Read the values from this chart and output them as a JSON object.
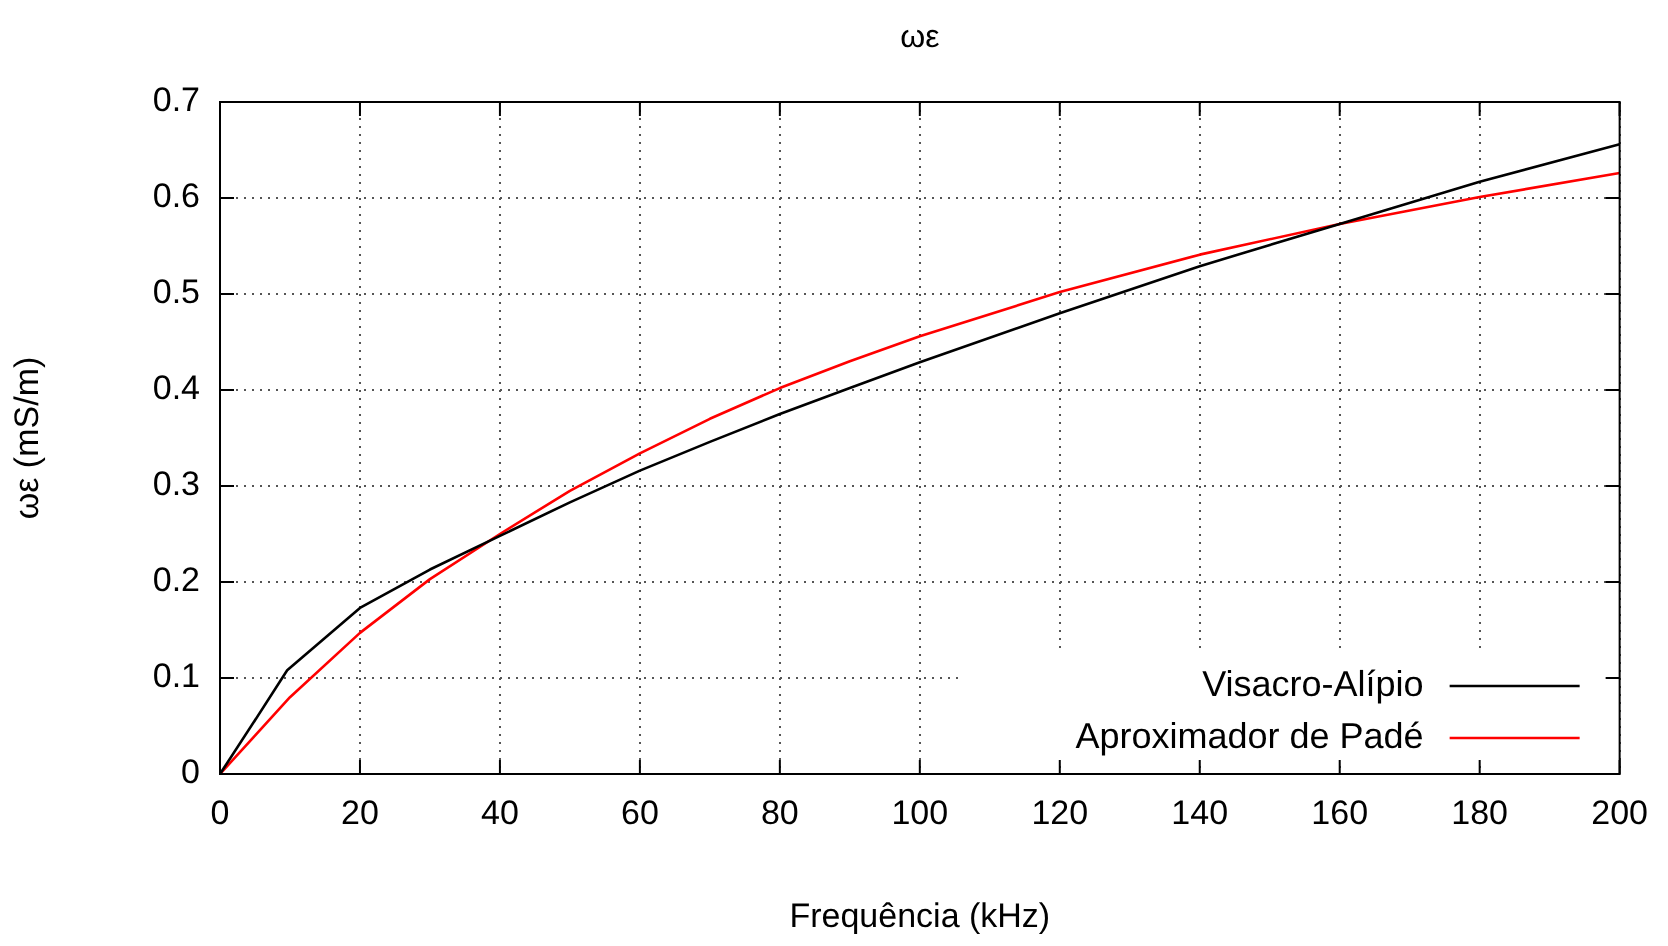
{
  "chart_data": {
    "type": "line",
    "title": "ωε",
    "xlabel": "Frequência (kHz)",
    "ylabel": "ωε (mS/m)",
    "xlim": [
      0,
      200
    ],
    "xticks": [
      0,
      20,
      40,
      60,
      80,
      100,
      120,
      140,
      160,
      180,
      200
    ],
    "ylim": [
      0,
      0.7
    ],
    "yticks": [
      0,
      0.1,
      0.2,
      0.3,
      0.4,
      0.5,
      0.6,
      0.7
    ],
    "grid": true,
    "legend": "bottom right",
    "marker": "none",
    "line_style": "solid",
    "series": [
      {
        "name": "Visacro-Alípio",
        "color": "#000000",
        "x": [
          0,
          5,
          9.6,
          20,
          30,
          40,
          50,
          60,
          70,
          80,
          90,
          100,
          120,
          140,
          160,
          180,
          200
        ],
        "values": [
          0,
          0.056,
          0.108,
          0.173,
          0.213,
          0.248,
          0.283,
          0.316,
          0.346,
          0.375,
          0.402,
          0.429,
          0.48,
          0.529,
          0.573,
          0.617,
          0.656
        ]
      },
      {
        "name": "Aproximador de Padé",
        "color": "#ff0000",
        "x": [
          0,
          5,
          10,
          20,
          30,
          40,
          50,
          60,
          70,
          80,
          90,
          100,
          120,
          140,
          160,
          180,
          200
        ],
        "values": [
          0,
          0.04,
          0.08,
          0.147,
          0.203,
          0.25,
          0.295,
          0.334,
          0.37,
          0.402,
          0.43,
          0.456,
          0.502,
          0.541,
          0.573,
          0.601,
          0.626
        ]
      }
    ]
  }
}
